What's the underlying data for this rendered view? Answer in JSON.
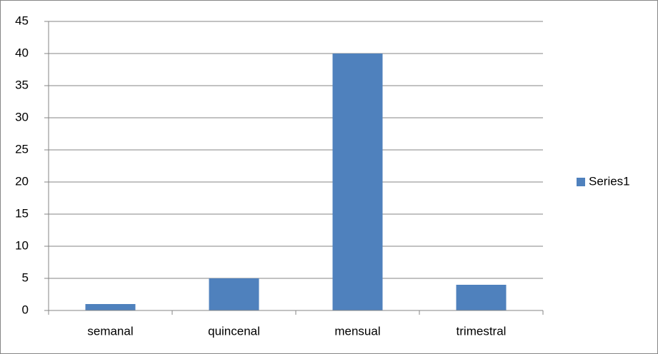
{
  "chart_data": {
    "type": "bar",
    "categories": [
      "semanal",
      "quincenal",
      "mensual",
      "trimestral"
    ],
    "series": [
      {
        "name": "Series1",
        "color": "#4f81bd",
        "values": [
          1,
          5,
          40,
          4
        ]
      }
    ],
    "ylim": [
      0,
      45
    ],
    "yticks": [
      0,
      5,
      10,
      15,
      20,
      25,
      30,
      35,
      40,
      45
    ],
    "grid": true,
    "legend": "right"
  }
}
